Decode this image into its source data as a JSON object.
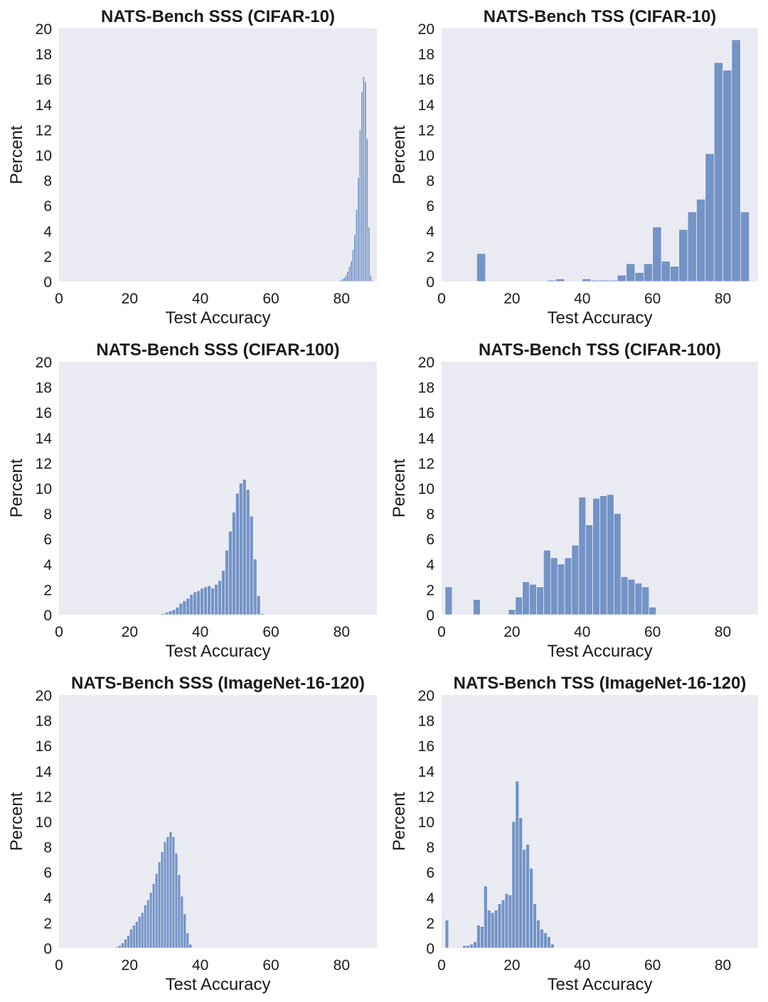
{
  "figure": {
    "colors": {
      "panel_bg": "#eaeaf2",
      "bar_fill": "#7493c6",
      "bar_edge": "#ffffff"
    }
  },
  "chart_data": [
    {
      "type": "bar",
      "title": "NATS-Bench SSS (CIFAR-10)",
      "xlabel": "Test Accuracy",
      "ylabel": "Percent",
      "xlim": [
        0,
        90
      ],
      "ylim": [
        0,
        20
      ],
      "xticks": [
        0,
        20,
        40,
        60,
        80
      ],
      "yticks": [
        0,
        2,
        4,
        6,
        8,
        10,
        12,
        14,
        16,
        18,
        20
      ],
      "bin_width": 0.5,
      "bins_start": [
        79.0,
        79.5,
        80.0,
        80.5,
        81.0,
        81.5,
        82.0,
        82.5,
        83.0,
        83.5,
        84.0,
        84.5,
        85.0,
        85.5,
        86.0,
        86.5,
        87.0,
        87.5,
        88.0,
        88.5
      ],
      "values": [
        0.05,
        0.1,
        0.2,
        0.3,
        0.5,
        0.8,
        1.2,
        1.6,
        2.5,
        3.7,
        5.7,
        8.2,
        12.0,
        15.0,
        16.2,
        15.8,
        11.3,
        4.3,
        0.5,
        0.1
      ]
    },
    {
      "type": "bar",
      "title": "NATS-Bench TSS (CIFAR-10)",
      "xlabel": "Test Accuracy",
      "ylabel": "Percent",
      "xlim": [
        0,
        90
      ],
      "ylim": [
        0,
        20
      ],
      "xticks": [
        0,
        20,
        40,
        60,
        80
      ],
      "yticks": [
        0,
        2,
        4,
        6,
        8,
        10,
        12,
        14,
        16,
        18,
        20
      ],
      "bin_width": 2.5,
      "bins_start": [
        10,
        30,
        32.5,
        40,
        42.5,
        45,
        47.5,
        50,
        52.5,
        55,
        57.5,
        60,
        62.5,
        65,
        67.5,
        70,
        72.5,
        75,
        77.5,
        80,
        82.5,
        85,
        87.5
      ],
      "values": [
        2.2,
        0.1,
        0.2,
        0.2,
        0.1,
        0.1,
        0.1,
        0.5,
        1.4,
        0.7,
        1.4,
        4.3,
        1.6,
        1.2,
        4.1,
        5.5,
        6.5,
        10.1,
        17.3,
        16.7,
        19.1,
        5.5,
        0.0
      ]
    },
    {
      "type": "bar",
      "title": "NATS-Bench SSS (CIFAR-100)",
      "xlabel": "Test Accuracy",
      "ylabel": "Percent",
      "xlim": [
        0,
        90
      ],
      "ylim": [
        0,
        20
      ],
      "xticks": [
        0,
        20,
        40,
        60,
        80
      ],
      "yticks": [
        0,
        2,
        4,
        6,
        8,
        10,
        12,
        14,
        16,
        18,
        20
      ],
      "bin_width": 1.0,
      "bins_start": [
        28,
        29,
        30,
        31,
        32,
        33,
        34,
        35,
        36,
        37,
        38,
        39,
        40,
        41,
        42,
        43,
        44,
        45,
        46,
        47,
        48,
        49,
        50,
        51,
        52,
        53,
        54,
        55,
        56,
        57,
        58,
        59,
        60
      ],
      "values": [
        0.05,
        0.1,
        0.2,
        0.3,
        0.4,
        0.6,
        0.9,
        1.1,
        1.3,
        1.6,
        1.8,
        1.9,
        2.1,
        2.2,
        2.3,
        2.1,
        2.4,
        2.7,
        3.5,
        5.1,
        6.6,
        8.1,
        9.6,
        10.4,
        10.7,
        9.9,
        7.8,
        4.4,
        1.5,
        0.1,
        0.0,
        0.0,
        0.0
      ]
    },
    {
      "type": "bar",
      "title": "NATS-Bench TSS (CIFAR-100)",
      "xlabel": "Test Accuracy",
      "ylabel": "Percent",
      "xlim": [
        0,
        90
      ],
      "ylim": [
        0,
        20
      ],
      "xticks": [
        0,
        20,
        40,
        60,
        80
      ],
      "yticks": [
        0,
        2,
        4,
        6,
        8,
        10,
        12,
        14,
        16,
        18,
        20
      ],
      "bin_width": 2.0,
      "bins_start": [
        1,
        9,
        19,
        21,
        23,
        25,
        27,
        29,
        31,
        33,
        35,
        37,
        39,
        41,
        43,
        45,
        47,
        49,
        51,
        53,
        55,
        57,
        59
      ],
      "values": [
        2.2,
        1.2,
        0.4,
        1.4,
        2.6,
        2.4,
        2.2,
        5.1,
        4.5,
        4.0,
        4.5,
        5.5,
        9.3,
        7.1,
        9.2,
        9.4,
        9.5,
        8.0,
        3.0,
        2.8,
        2.5,
        2.2,
        0.6
      ]
    },
    {
      "type": "bar",
      "title": "NATS-Bench SSS (ImageNet-16-120)",
      "xlabel": "Test Accuracy",
      "ylabel": "Percent",
      "xlim": [
        0,
        90
      ],
      "ylim": [
        0,
        20
      ],
      "xticks": [
        0,
        20,
        40,
        60,
        80
      ],
      "yticks": [
        0,
        2,
        4,
        6,
        8,
        10,
        12,
        14,
        16,
        18,
        20
      ],
      "bin_width": 0.8,
      "bins_start": [
        16.0,
        16.8,
        17.6,
        18.4,
        19.2,
        20.0,
        20.8,
        21.6,
        22.4,
        23.2,
        24.0,
        24.8,
        25.6,
        26.4,
        27.2,
        28.0,
        28.8,
        29.6,
        30.4,
        31.2,
        32.0,
        32.8,
        33.6,
        34.4,
        35.2,
        36.0,
        36.8
      ],
      "values": [
        0.1,
        0.2,
        0.4,
        0.7,
        1.0,
        1.5,
        1.8,
        2.1,
        2.5,
        2.8,
        3.4,
        3.8,
        4.4,
        5.1,
        5.9,
        6.8,
        7.6,
        8.4,
        8.8,
        9.2,
        8.8,
        7.5,
        5.8,
        4.1,
        2.7,
        1.2,
        0.3
      ]
    },
    {
      "type": "bar",
      "title": "NATS-Bench TSS (ImageNet-16-120)",
      "xlabel": "Test Accuracy",
      "ylabel": "Percent",
      "xlim": [
        0,
        90
      ],
      "ylim": [
        0,
        20
      ],
      "xticks": [
        0,
        20,
        40,
        60,
        80
      ],
      "yticks": [
        0,
        2,
        4,
        6,
        8,
        10,
        12,
        14,
        16,
        18,
        20
      ],
      "bin_width": 1.0,
      "bins_start": [
        1,
        6,
        7,
        8,
        9,
        10,
        11,
        12,
        13,
        14,
        15,
        16,
        17,
        18,
        19,
        20,
        21,
        22,
        23,
        24,
        25,
        26,
        27,
        28,
        29,
        30,
        31,
        32,
        33,
        34,
        35,
        36
      ],
      "values": [
        2.2,
        0.2,
        0.2,
        0.3,
        0.5,
        1.8,
        1.7,
        4.9,
        3.0,
        2.8,
        3.0,
        3.5,
        3.8,
        4.3,
        4.2,
        10.0,
        13.2,
        10.3,
        7.8,
        8.2,
        6.3,
        3.5,
        2.2,
        1.5,
        1.2,
        0.9,
        0.3,
        0.0,
        0.0,
        0.0,
        0.0,
        0.0
      ]
    }
  ]
}
